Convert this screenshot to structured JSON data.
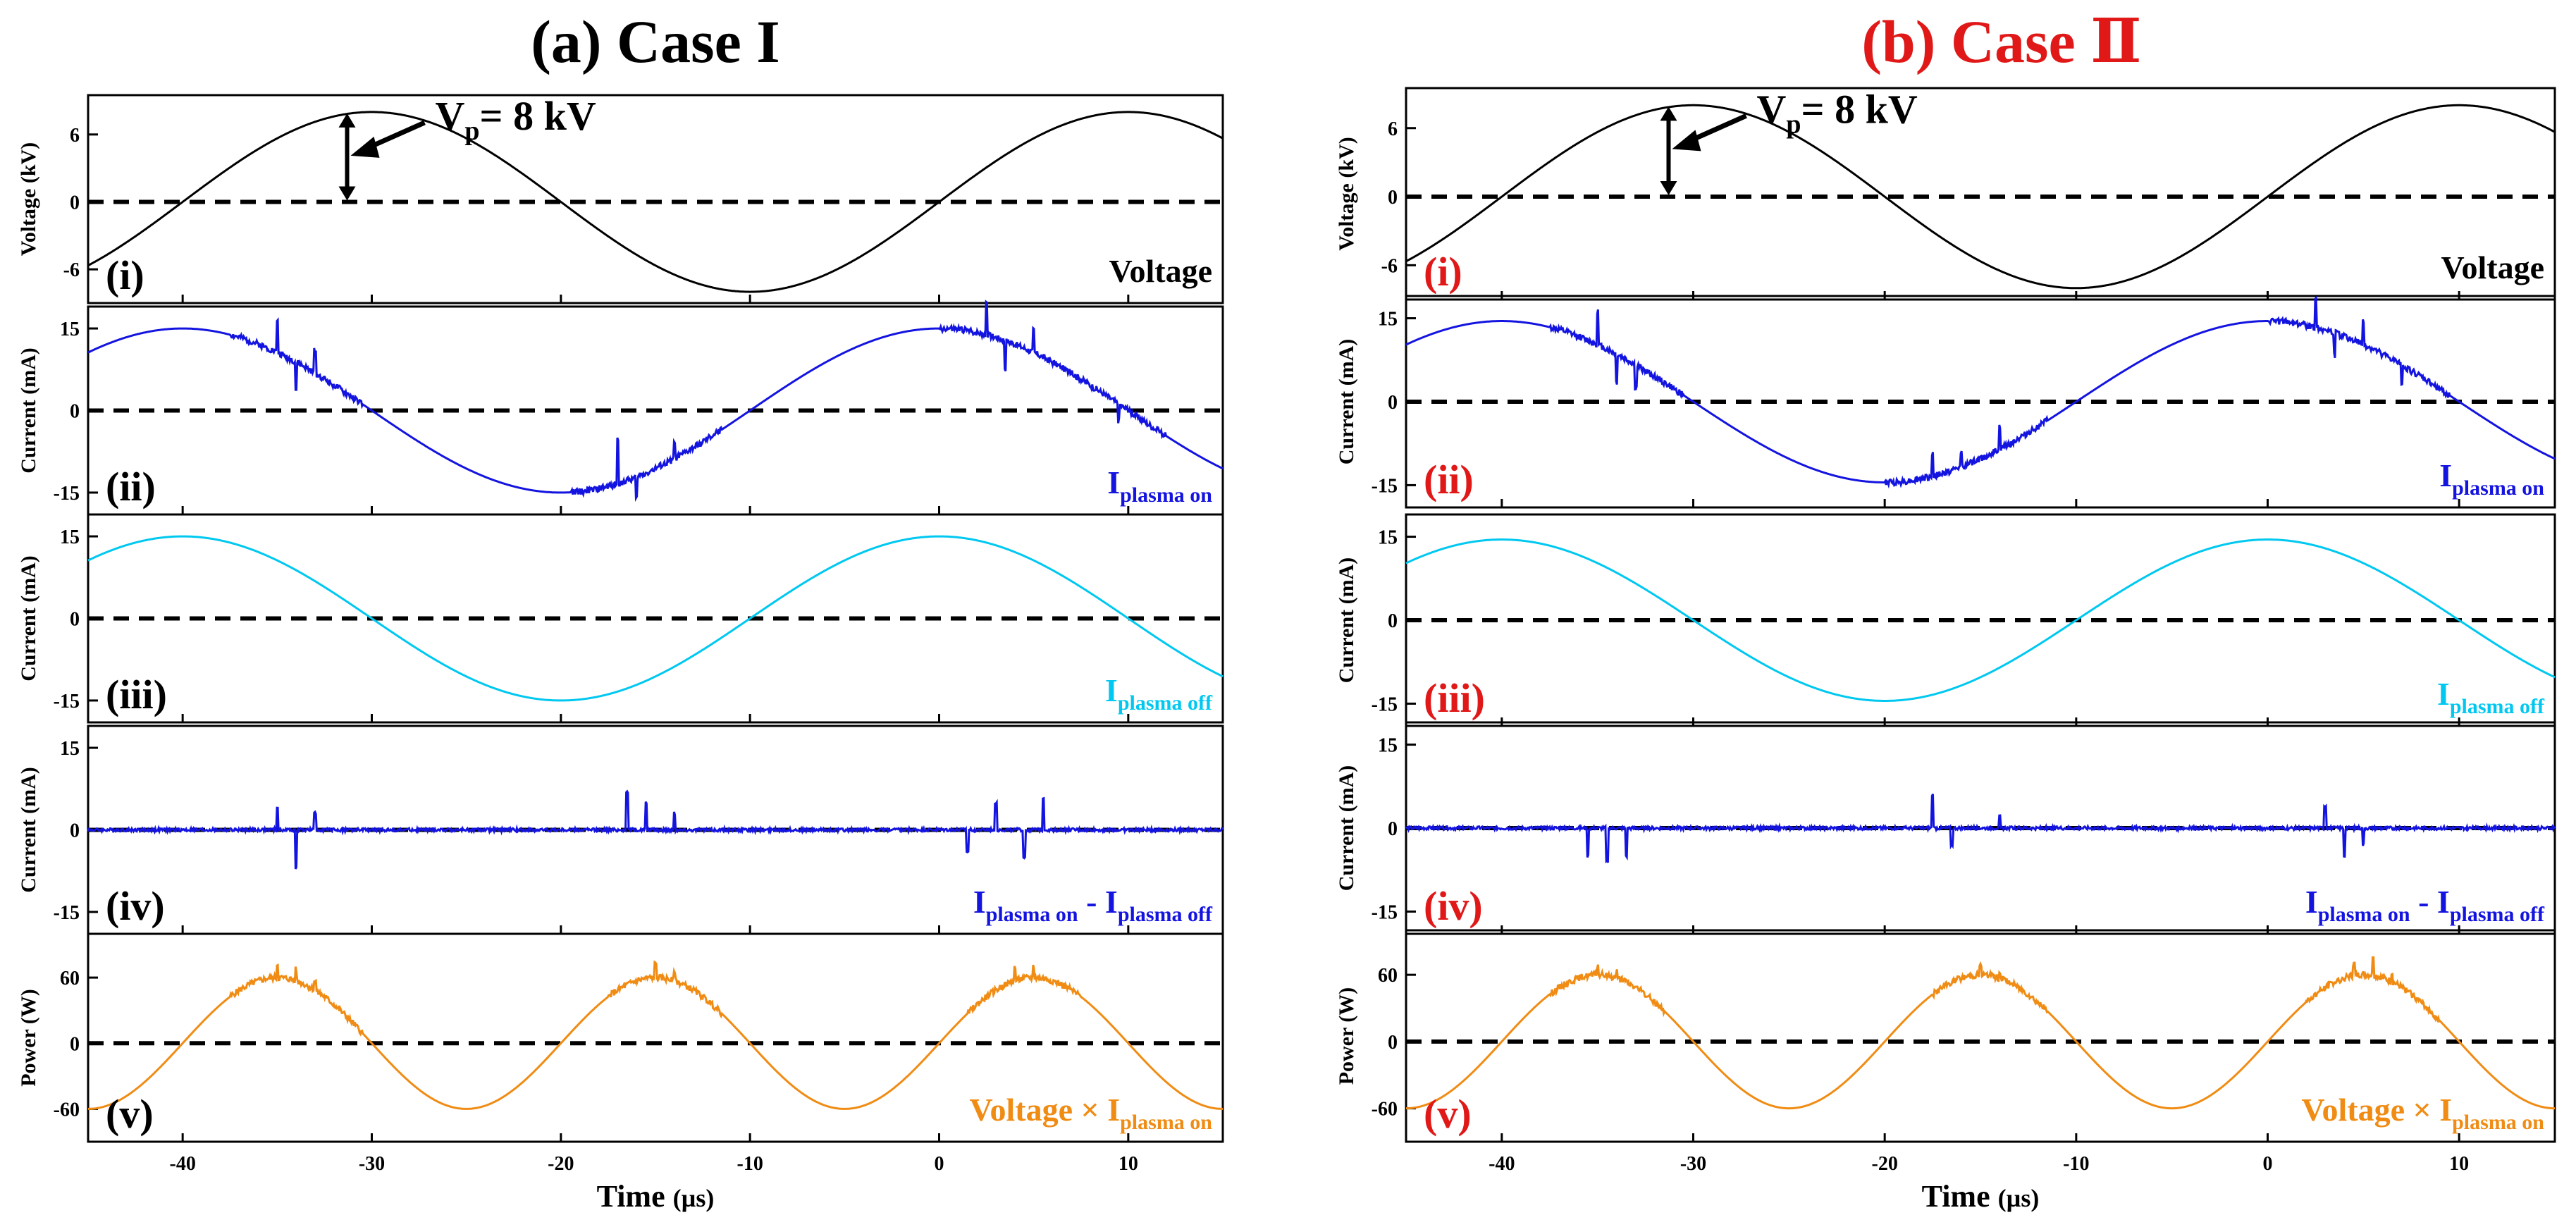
{
  "chart_data": [
    {
      "type": "line",
      "title": "(a) Case I",
      "title_color": "#000000",
      "panel_label_color": "#000000",
      "xlabel": "Time",
      "xlabel_unit": "(µs)",
      "xlim": [
        -45,
        15
      ],
      "xticks": [
        "-40",
        "-30",
        "-20",
        "-10",
        "0",
        "10"
      ],
      "xtick_values": [
        -40,
        -30,
        -20,
        -10,
        0,
        10
      ],
      "annotation": {
        "text": "V",
        "sub": "p",
        "tail": "= 8 kV"
      },
      "subplots": [
        {
          "label": "(i)",
          "ylabel": "Voltage (kV)",
          "ylim": [
            -9,
            9.5
          ],
          "yticks": [
            "-6",
            "0",
            "6"
          ],
          "ytick_values": [
            -6,
            0,
            6
          ],
          "series": [
            {
              "name": "Voltage",
              "color": "#000000",
              "kind": "sin",
              "amplitude": 8,
              "period_us": 40,
              "peak_at_us": -30,
              "spikes": []
            }
          ],
          "legend": {
            "main": "Voltage",
            "sub": "",
            "tail": "",
            "color": "#000000"
          }
        },
        {
          "label": "(ii)",
          "ylabel": "Current (mA)",
          "ylim": [
            -19,
            19
          ],
          "yticks": [
            "-15",
            "0",
            "15"
          ],
          "ytick_values": [
            -15,
            0,
            15
          ],
          "series": [
            {
              "name": "I plasma on",
              "color": "#1414e0",
              "kind": "sin",
              "amplitude": 15,
              "period_us": 40,
              "peak_at_us": -40,
              "spikes": [
                [
                  -35,
                  6
                ],
                [
                  -34,
                  -5
                ],
                [
                  -33,
                  4
                ],
                [
                  -17,
                  8
                ],
                [
                  -16,
                  -4
                ],
                [
                  -14,
                  3
                ],
                [
                  2.5,
                  6
                ],
                [
                  3.5,
                  -5
                ],
                [
                  5,
                  4
                ],
                [
                  9.5,
                  -3
                ]
              ]
            }
          ],
          "legend": {
            "main": "I",
            "sub": "plasma on",
            "tail": "",
            "color": "#1414e0"
          }
        },
        {
          "label": "(iii)",
          "ylabel": "Current (mA)",
          "ylim": [
            -19,
            19
          ],
          "yticks": [
            "-15",
            "0",
            "15"
          ],
          "ytick_values": [
            -15,
            0,
            15
          ],
          "series": [
            {
              "name": "I plasma off",
              "color": "#00c8f0",
              "kind": "sin",
              "amplitude": 15,
              "period_us": 40,
              "peak_at_us": -40,
              "spikes": []
            }
          ],
          "legend": {
            "main": "I",
            "sub": "plasma off",
            "tail": "",
            "color": "#00c8f0"
          }
        },
        {
          "label": "(iv)",
          "ylabel": "Current (mA)",
          "ylim": [
            -19,
            19
          ],
          "yticks": [
            "-15",
            "0",
            "15"
          ],
          "ytick_values": [
            -15,
            0,
            15
          ],
          "series": [
            {
              "name": "I plasma on - I plasma off",
              "color": "#1414e0",
              "kind": "flat",
              "amplitude": 0,
              "period_us": 40,
              "peak_at_us": 0,
              "spikes": [
                [
                  -35,
                  4
                ],
                [
                  -34,
                  -7
                ],
                [
                  -33,
                  3
                ],
                [
                  -16.5,
                  7
                ],
                [
                  -15.5,
                  5
                ],
                [
                  -14,
                  3
                ],
                [
                  1.5,
                  -4
                ],
                [
                  3,
                  5
                ],
                [
                  4.5,
                  -5
                ],
                [
                  5.5,
                  6
                ]
              ]
            }
          ],
          "legend": {
            "main": "I",
            "sub": "plasma on",
            "tail": " - I",
            "sub2": "plasma off",
            "color": "#1414e0"
          }
        },
        {
          "label": "(v)",
          "ylabel": "Power (W)",
          "ylim": [
            -90,
            100
          ],
          "yticks": [
            "-60",
            "0",
            "60"
          ],
          "ytick_values": [
            -60,
            0,
            60
          ],
          "series": [
            {
              "name": "Voltage x I plasma on",
              "color": "#f08c14",
              "kind": "sin",
              "amplitude": 60,
              "period_us": 20,
              "peak_at_us": -35,
              "offset": 0,
              "spikes": [
                [
                  -35,
                  12
                ],
                [
                  -34,
                  10
                ],
                [
                  -33,
                  8
                ],
                [
                  -15,
                  12
                ],
                [
                  -14,
                  10
                ],
                [
                  4,
                  12
                ],
                [
                  5,
                  10
                ]
              ]
            }
          ],
          "legend": {
            "main": "Voltage × I",
            "sub": "plasma on",
            "tail": "",
            "color": "#f08c14"
          }
        }
      ]
    },
    {
      "type": "line",
      "title": "(b) Case Ⅱ",
      "title_color": "#e01818",
      "panel_label_color": "#e01818",
      "xlabel": "Time",
      "xlabel_unit": "(µs)",
      "xlim": [
        -45,
        15
      ],
      "xticks": [
        "-40",
        "-30",
        "-20",
        "-10",
        "0",
        "10"
      ],
      "xtick_values": [
        -40,
        -30,
        -20,
        -10,
        0,
        10
      ],
      "annotation": {
        "text": "V",
        "sub": "p",
        "tail": "= 8 kV"
      },
      "subplots": [
        {
          "label": "(i)",
          "ylabel": "Voltage (kV)",
          "ylim": [
            -9,
            9.5
          ],
          "yticks": [
            "-6",
            "0",
            "6"
          ],
          "ytick_values": [
            -6,
            0,
            6
          ],
          "series": [
            {
              "name": "Voltage",
              "color": "#000000",
              "kind": "sin",
              "amplitude": 8,
              "period_us": 40,
              "peak_at_us": -30,
              "spikes": []
            }
          ],
          "legend": {
            "main": "Voltage",
            "sub": "",
            "tail": "",
            "color": "#000000"
          }
        },
        {
          "label": "(ii)",
          "ylabel": "Current (mA)",
          "ylim": [
            -19,
            19
          ],
          "yticks": [
            "-15",
            "0",
            "15"
          ],
          "ytick_values": [
            -15,
            0,
            15
          ],
          "series": [
            {
              "name": "I plasma on",
              "color": "#1414e0",
              "kind": "sin",
              "amplitude": 14.5,
              "period_us": 40,
              "peak_at_us": -40,
              "spikes": [
                [
                  -35,
                  6
                ],
                [
                  -34,
                  -5
                ],
                [
                  -33,
                  -4
                ],
                [
                  -17.5,
                  4
                ],
                [
                  -16,
                  3
                ],
                [
                  -14,
                  4
                ],
                [
                  2.5,
                  5
                ],
                [
                  3.5,
                  -4
                ],
                [
                  5,
                  4
                ],
                [
                  7,
                  -3
                ]
              ]
            }
          ],
          "legend": {
            "main": "I",
            "sub": "plasma on",
            "tail": "",
            "color": "#1414e0"
          }
        },
        {
          "label": "(iii)",
          "ylabel": "Current (mA)",
          "ylim": [
            -19,
            19
          ],
          "yticks": [
            "-15",
            "0",
            "15"
          ],
          "ytick_values": [
            -15,
            0,
            15
          ],
          "series": [
            {
              "name": "I plasma off",
              "color": "#00c8f0",
              "kind": "sin",
              "amplitude": 14.5,
              "period_us": 40,
              "peak_at_us": -40,
              "spikes": []
            }
          ],
          "legend": {
            "main": "I",
            "sub": "plasma off",
            "tail": "",
            "color": "#00c8f0"
          }
        },
        {
          "label": "(iv)",
          "ylabel": "Current (mA)",
          "ylim": [
            -19,
            19
          ],
          "yticks": [
            "-15",
            "0",
            "15"
          ],
          "ytick_values": [
            -15,
            0,
            15
          ],
          "series": [
            {
              "name": "I plasma on - I plasma off",
              "color": "#1414e0",
              "kind": "flat",
              "amplitude": 0,
              "period_us": 40,
              "peak_at_us": 0,
              "spikes": [
                [
                  -35.5,
                  -5
                ],
                [
                  -34.5,
                  -6
                ],
                [
                  -33.5,
                  -5
                ],
                [
                  -17.5,
                  6
                ],
                [
                  -16.5,
                  -3
                ],
                [
                  -14,
                  2
                ],
                [
                  3,
                  4
                ],
                [
                  4,
                  -5
                ],
                [
                  5,
                  -3
                ]
              ]
            }
          ],
          "legend": {
            "main": "I",
            "sub": "plasma on",
            "tail": " - I",
            "sub2": "plasma off",
            "color": "#1414e0"
          }
        },
        {
          "label": "(v)",
          "ylabel": "Power (W)",
          "ylim": [
            -90,
            100
          ],
          "yticks": [
            "-60",
            "0",
            "60"
          ],
          "ytick_values": [
            -60,
            0,
            60
          ],
          "series": [
            {
              "name": "Voltage x I plasma on",
              "color": "#f08c14",
              "kind": "sin",
              "amplitude": 60,
              "period_us": 20,
              "peak_at_us": -35,
              "offset": 0,
              "spikes": [
                [
                  -35,
                  8
                ],
                [
                  -34,
                  6
                ],
                [
                  -15,
                  8
                ],
                [
                  -14,
                  6
                ],
                [
                  4.5,
                  10
                ],
                [
                  5.5,
                  18
                ],
                [
                  6.5,
                  8
                ]
              ]
            }
          ],
          "legend": {
            "main": "Voltage × I",
            "sub": "plasma on",
            "tail": "",
            "color": "#f08c14"
          }
        }
      ]
    }
  ]
}
